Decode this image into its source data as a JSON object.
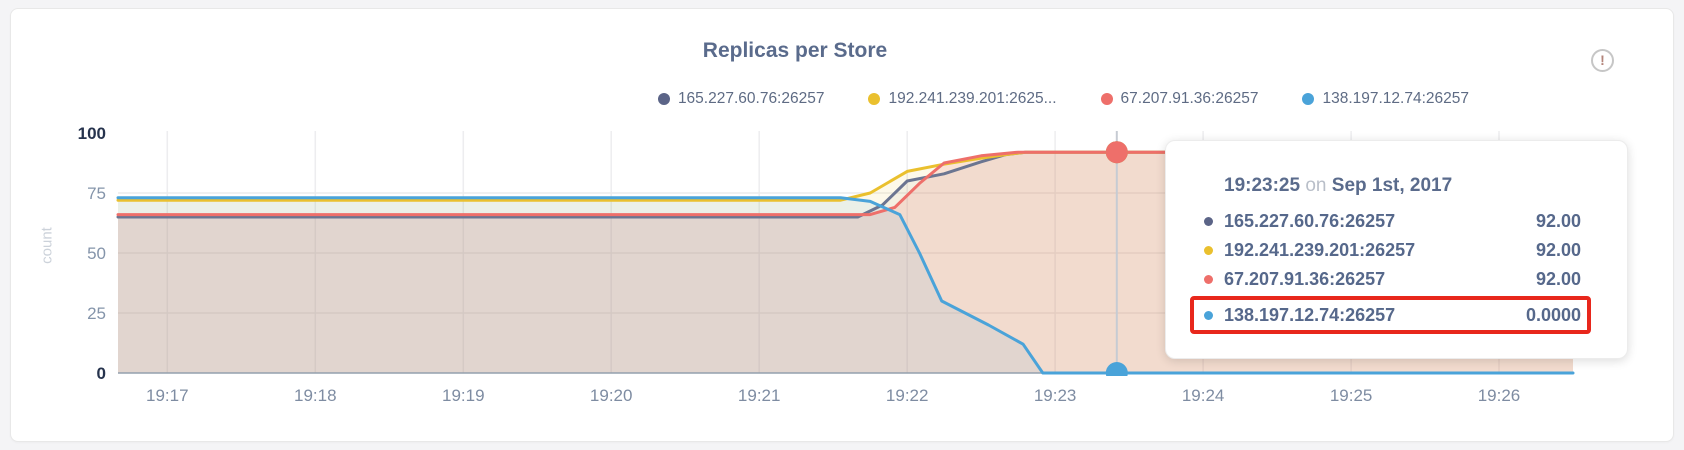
{
  "page": {
    "background": "#f4f4f6",
    "card_background": "#ffffff",
    "card_border": "#e8e8e8"
  },
  "header": {
    "title": "Replicas per Store",
    "warning_glyph": "!"
  },
  "legend": {
    "items": [
      {
        "label": "165.227.60.76:26257",
        "color": "#5b6487"
      },
      {
        "label": "192.241.239.201:2625...",
        "color": "#eac02e"
      },
      {
        "label": "67.207.91.36:26257",
        "color": "#ee6f6a"
      },
      {
        "label": "138.197.12.74:26257",
        "color": "#4aa3d9"
      }
    ]
  },
  "tooltip": {
    "time": "19:23:25",
    "conjunction": "on",
    "date": "Sep 1st, 2017",
    "highlight_border_color": "#e8271c",
    "rows": [
      {
        "label": "165.227.60.76:26257",
        "value": "92.00",
        "color": "#5b6487",
        "highlighted": false
      },
      {
        "label": "192.241.239.201:26257",
        "value": "92.00",
        "color": "#eac02e",
        "highlighted": false
      },
      {
        "label": "67.207.91.36:26257",
        "value": "92.00",
        "color": "#ee6f6a",
        "highlighted": false
      },
      {
        "label": "138.197.12.74:26257",
        "value": "0.0000",
        "color": "#4aa3d9",
        "highlighted": true
      }
    ]
  },
  "chart_data": {
    "type": "area",
    "title": "Replicas per Store",
    "ylabel": "count",
    "ylim": [
      0,
      100
    ],
    "y_ticks": [
      0,
      25,
      50,
      75,
      100
    ],
    "x_ticks": [
      "19:17",
      "19:18",
      "19:19",
      "19:20",
      "19:21",
      "19:22",
      "19:23",
      "19:24",
      "19:25",
      "19:26"
    ],
    "x_domain": [
      "19:16:40",
      "19:26:30"
    ],
    "grid": true,
    "legend_position": "top-right",
    "series": [
      {
        "name": "165.227.60.76:26257",
        "color": "#6b7591",
        "fill_opacity": 0.07,
        "points": [
          [
            "19:16:40",
            65
          ],
          [
            "19:21:40",
            65
          ],
          [
            "19:21:50",
            70
          ],
          [
            "19:22:00",
            80
          ],
          [
            "19:22:15",
            83
          ],
          [
            "19:22:30",
            88
          ],
          [
            "19:22:40",
            91
          ],
          [
            "19:22:48",
            92
          ],
          [
            "19:26:30",
            92
          ]
        ]
      },
      {
        "name": "192.241.239.201:26257",
        "color": "#eac02e",
        "fill_opacity": 0.1,
        "points": [
          [
            "19:16:40",
            72
          ],
          [
            "19:21:33",
            72
          ],
          [
            "19:21:45",
            75
          ],
          [
            "19:22:00",
            84
          ],
          [
            "19:22:15",
            87
          ],
          [
            "19:22:30",
            89.5
          ],
          [
            "19:22:40",
            91
          ],
          [
            "19:22:48",
            92
          ],
          [
            "19:26:30",
            92
          ]
        ]
      },
      {
        "name": "67.207.91.36:26257",
        "color": "#ee6f6a",
        "fill_opacity": 0.16,
        "points": [
          [
            "19:16:40",
            66
          ],
          [
            "19:21:45",
            66
          ],
          [
            "19:21:55",
            69
          ],
          [
            "19:22:05",
            79
          ],
          [
            "19:22:15",
            87.5
          ],
          [
            "19:22:20",
            88.5
          ],
          [
            "19:22:30",
            90.5
          ],
          [
            "19:22:45",
            92
          ],
          [
            "19:26:30",
            92
          ]
        ]
      },
      {
        "name": "138.197.12.74:26257",
        "color": "#4aa3d9",
        "fill_opacity": 0.1,
        "points": [
          [
            "19:16:40",
            73
          ],
          [
            "19:21:33",
            73
          ],
          [
            "19:21:45",
            71.5
          ],
          [
            "19:21:57",
            66
          ],
          [
            "19:22:05",
            50
          ],
          [
            "19:22:14",
            30
          ],
          [
            "19:22:33",
            20
          ],
          [
            "19:22:47",
            12
          ],
          [
            "19:22:55",
            0
          ],
          [
            "19:26:30",
            0
          ]
        ]
      }
    ],
    "hover": {
      "time": "19:23:25",
      "date": "Sep 1st, 2017",
      "markers": [
        {
          "series": "165.227.60.76:26257",
          "value": 92
        },
        {
          "series": "192.241.239.201:26257",
          "value": 92
        },
        {
          "series": "67.207.91.36:26257",
          "value": 92
        },
        {
          "series": "138.197.12.74:26257",
          "value": 0
        }
      ]
    }
  }
}
